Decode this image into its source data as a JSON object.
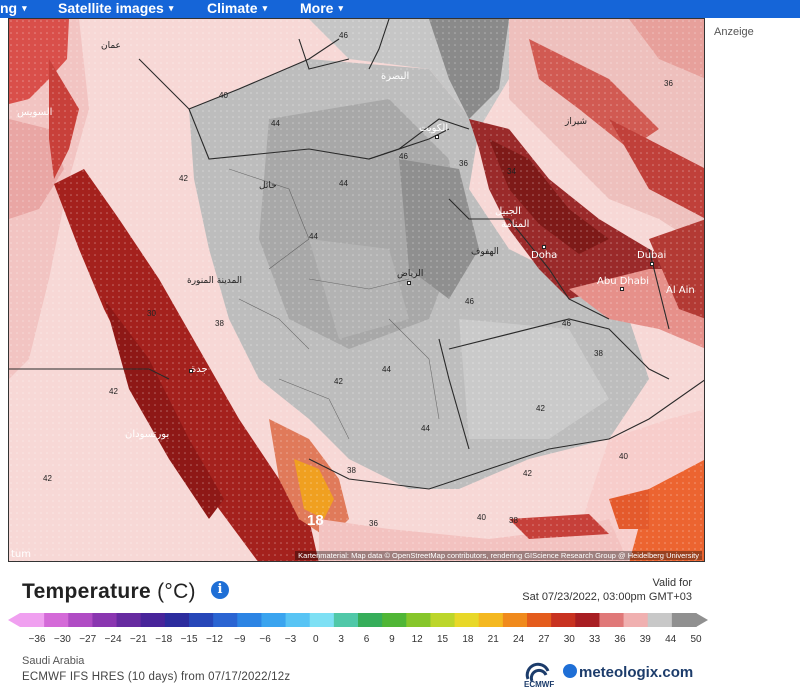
{
  "nav": {
    "items": [
      {
        "label": "ng",
        "caret": "▾"
      },
      {
        "label": "Satellite images",
        "caret": "▾"
      },
      {
        "label": "Climate",
        "caret": "▾"
      },
      {
        "label": "More",
        "caret": "▾"
      }
    ]
  },
  "ad_label": "Anzeige",
  "map": {
    "attribution": "Kartenmaterial: Map data © OpenStreetMap contributors, rendering GIScience Research Group @ Heidelberg University",
    "cities": [
      {
        "name": "Doha"
      },
      {
        "name": "Dubai"
      },
      {
        "name": "Abu Dhabi"
      },
      {
        "name": "Al Ain"
      },
      {
        "name": "الرياض"
      },
      {
        "name": "الكويت"
      },
      {
        "name": "حائل"
      },
      {
        "name": "المدينة المنورة"
      },
      {
        "name": "جدة"
      },
      {
        "name": "بورتسودان"
      },
      {
        "name": "السويس"
      },
      {
        "name": "عمان"
      },
      {
        "name": "البصرة"
      },
      {
        "name": "الجبيل"
      },
      {
        "name": "المنامة"
      },
      {
        "name": "الهفوف"
      },
      {
        "name": "شيراز"
      },
      {
        "name": "tum"
      }
    ],
    "temps": [
      "46",
      "40",
      "44",
      "42",
      "44",
      "44",
      "46",
      "36",
      "34",
      "38",
      "30",
      "42",
      "42",
      "44",
      "44",
      "46",
      "46",
      "38",
      "36",
      "42",
      "40",
      "38",
      "42",
      "40",
      "36",
      "38",
      "42",
      "18"
    ],
    "highlight_temp": "18"
  },
  "legend": {
    "title": "Temperature",
    "unit": "(°C)",
    "info_icon": "info-icon",
    "valid_label": "Valid for",
    "valid_date": "Sat 07/23/2022, 03:00pm GMT+03",
    "ticks": [
      "−36",
      "−30",
      "−27",
      "−24",
      "−21",
      "−18",
      "−15",
      "−12",
      "−9",
      "−6",
      "−3",
      "0",
      "3",
      "6",
      "9",
      "12",
      "15",
      "18",
      "21",
      "24",
      "27",
      "30",
      "33",
      "36",
      "39",
      "44",
      "50"
    ],
    "colors": [
      "#f0a0f0",
      "#d46ad8",
      "#b04cc4",
      "#8a36b0",
      "#662aa0",
      "#48249a",
      "#2c2c9e",
      "#2646b8",
      "#2a64d2",
      "#2c84e4",
      "#3aa4ef",
      "#58c4f4",
      "#7ee0f4",
      "#50c8a8",
      "#36ae5a",
      "#50b636",
      "#86c62a",
      "#bcd62a",
      "#e8d828",
      "#f4b820",
      "#f08a1c",
      "#e45c1c",
      "#c83220",
      "#a81e22",
      "#e07878",
      "#f0b0b0",
      "#c8c8c8",
      "#909090"
    ]
  },
  "footer": {
    "region": "Saudi Arabia",
    "model": "ECMWF IFS HRES (10 days) from 07/17/2022/12z",
    "ecmwf_label": "ECMWF",
    "brand": "meteologix.com"
  }
}
